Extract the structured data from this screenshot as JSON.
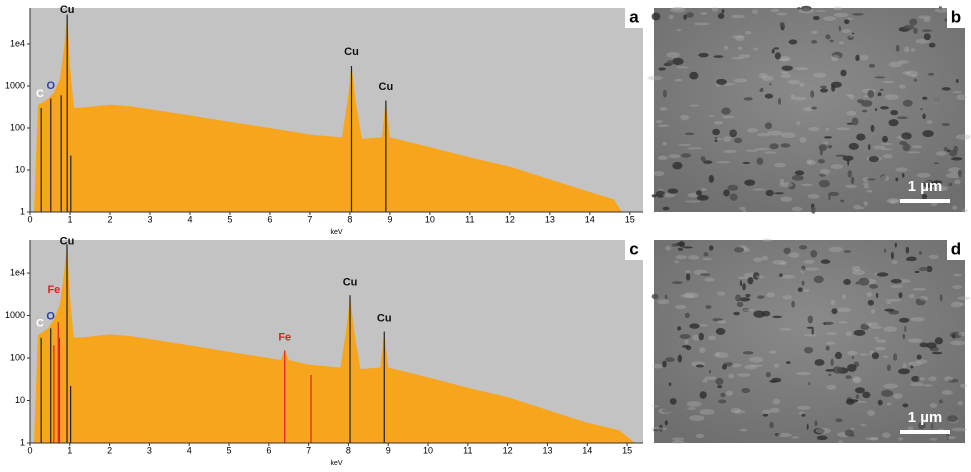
{
  "chart_data": [
    {
      "type": "area",
      "panel": "a",
      "xlabel": "keV",
      "log_y": true,
      "color": "#f7a51c",
      "background": "#c3c3c3",
      "xlim": [
        0,
        15.33
      ],
      "ylim": [
        1,
        72000
      ],
      "xticks": [
        0,
        1,
        2,
        3,
        4,
        5,
        6,
        7,
        8,
        9,
        10,
        11,
        12,
        13,
        14,
        15
      ],
      "yticks": [
        1,
        10,
        100,
        1000,
        {
          "value": 10000,
          "label": "1e4"
        }
      ],
      "x": [
        0.1,
        0.2,
        0.3,
        0.45,
        0.6,
        0.75,
        0.85,
        0.93,
        1.0,
        1.1,
        1.5,
        2.0,
        2.5,
        3.0,
        4.0,
        5.0,
        6.0,
        7.0,
        7.8,
        7.95,
        8.04,
        8.15,
        8.3,
        8.8,
        8.9,
        9.0,
        10.0,
        11.0,
        12.0,
        13.0,
        14.0,
        14.6,
        14.8
      ],
      "values": [
        1,
        350,
        400,
        500,
        700,
        1500,
        8000,
        50000,
        3000,
        300,
        320,
        360,
        330,
        280,
        200,
        140,
        100,
        70,
        60,
        500,
        3000,
        400,
        55,
        60,
        450,
        60,
        35,
        20,
        12,
        6,
        3,
        2,
        1
      ],
      "lines": [
        {
          "x": 0.28,
          "height": 300,
          "color": "#222222"
        },
        {
          "x": 0.52,
          "height": 500,
          "color": "#222222"
        },
        {
          "x": 0.78,
          "height": 600,
          "color": "#222222"
        },
        {
          "x": 0.93,
          "height": 50000,
          "color": "#222222"
        },
        {
          "x": 1.02,
          "height": 22,
          "color": "#222222"
        },
        {
          "x": 8.04,
          "height": 3000,
          "color": "#222222"
        },
        {
          "x": 8.9,
          "height": 450,
          "color": "#222222"
        }
      ],
      "labels": [
        {
          "text": "Cu",
          "x": 0.93,
          "y": 65000,
          "color": "#111111"
        },
        {
          "text": "C",
          "x": 0.25,
          "y": 650,
          "color": "#ffffff"
        },
        {
          "text": "O",
          "x": 0.52,
          "y": 1000,
          "color": "#2a3fa8"
        },
        {
          "text": "Cu",
          "x": 8.04,
          "y": 6500,
          "color": "#111111"
        },
        {
          "text": "Cu",
          "x": 8.9,
          "y": 950,
          "color": "#111111"
        }
      ]
    },
    {
      "type": "area",
      "panel": "c",
      "xlabel": "keV",
      "log_y": true,
      "color": "#f7a51c",
      "background": "#c3c3c3",
      "xlim": [
        0,
        15.4
      ],
      "ylim": [
        1,
        60000
      ],
      "xticks": [
        0,
        1,
        2,
        3,
        4,
        5,
        6,
        7,
        8,
        9,
        10,
        11,
        12,
        13,
        14,
        15
      ],
      "yticks": [
        1,
        10,
        100,
        1000,
        {
          "value": 10000,
          "label": "1e4"
        }
      ],
      "x": [
        0.1,
        0.2,
        0.3,
        0.45,
        0.6,
        0.75,
        0.85,
        0.93,
        1.0,
        1.1,
        1.5,
        2.0,
        2.5,
        3.0,
        4.0,
        5.0,
        6.0,
        6.3,
        6.4,
        6.5,
        7.0,
        7.8,
        7.95,
        8.04,
        8.15,
        8.3,
        8.8,
        8.9,
        9.0,
        10.0,
        11.0,
        12.0,
        13.0,
        14.0,
        14.8,
        15.2
      ],
      "values": [
        1,
        350,
        400,
        500,
        800,
        1800,
        9000,
        48000,
        3000,
        300,
        320,
        360,
        330,
        280,
        200,
        140,
        100,
        90,
        160,
        90,
        70,
        60,
        500,
        3000,
        400,
        55,
        60,
        420,
        60,
        35,
        20,
        12,
        6,
        3,
        2,
        1
      ],
      "lines": [
        {
          "x": 0.28,
          "height": 300,
          "color": "#222222"
        },
        {
          "x": 0.52,
          "height": 500,
          "color": "#222222"
        },
        {
          "x": 0.6,
          "height": 200,
          "color": "#e02020"
        },
        {
          "x": 0.71,
          "height": 700,
          "color": "#e02020"
        },
        {
          "x": 0.74,
          "height": 300,
          "color": "#e02020"
        },
        {
          "x": 0.93,
          "height": 48000,
          "color": "#222222"
        },
        {
          "x": 1.02,
          "height": 22,
          "color": "#222222"
        },
        {
          "x": 6.4,
          "height": 150,
          "color": "#e02020"
        },
        {
          "x": 7.06,
          "height": 40,
          "color": "#e02020"
        },
        {
          "x": 8.04,
          "height": 3000,
          "color": "#222222"
        },
        {
          "x": 8.9,
          "height": 420,
          "color": "#222222"
        }
      ],
      "labels": [
        {
          "text": "Cu",
          "x": 0.93,
          "y": 55000,
          "color": "#111111"
        },
        {
          "text": "Fe",
          "x": 0.6,
          "y": 4000,
          "color": "#e02020"
        },
        {
          "text": "C",
          "x": 0.25,
          "y": 650,
          "color": "#ffffff"
        },
        {
          "text": "O",
          "x": 0.52,
          "y": 950,
          "color": "#2a3fa8"
        },
        {
          "text": "Fe",
          "x": 6.4,
          "y": 300,
          "color": "#e02020"
        },
        {
          "text": "Cu",
          "x": 8.04,
          "y": 6000,
          "color": "#111111"
        },
        {
          "text": "Cu",
          "x": 8.9,
          "y": 850,
          "color": "#111111"
        }
      ]
    }
  ],
  "images": [
    {
      "panel": "b",
      "scale_bar": "1 µm"
    },
    {
      "panel": "d",
      "scale_bar": "1 µm"
    }
  ]
}
